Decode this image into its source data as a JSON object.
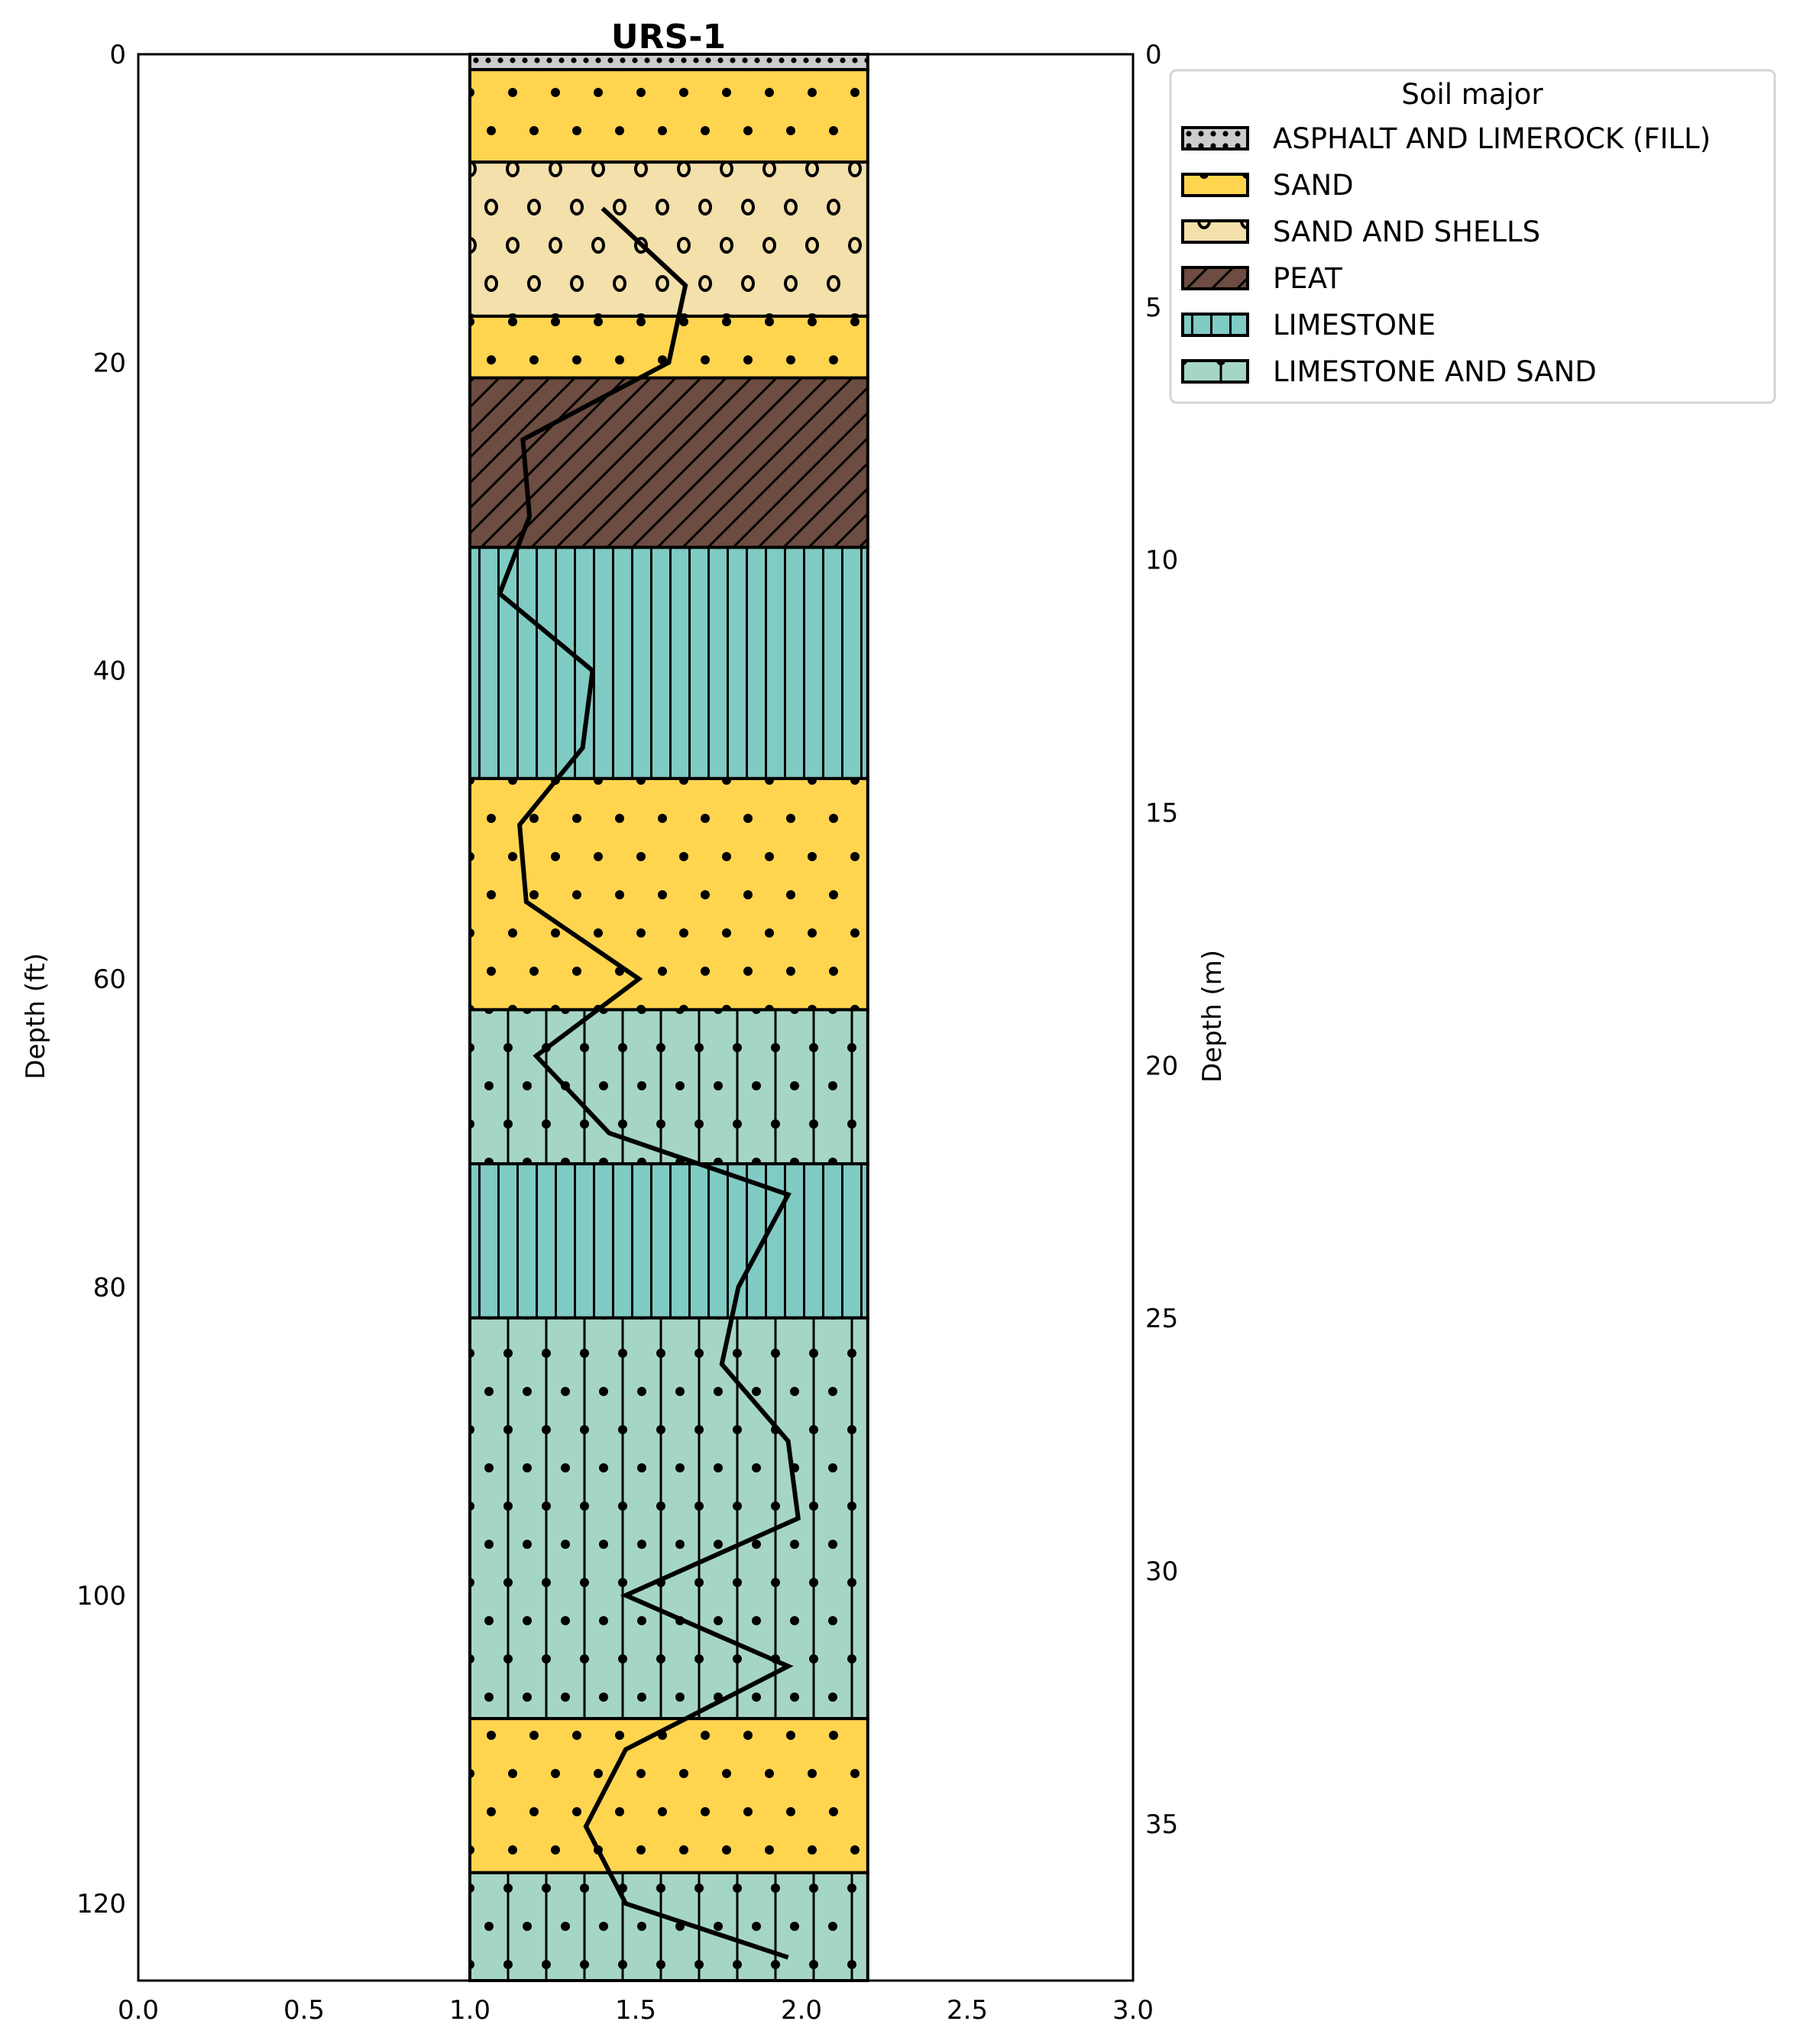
{
  "chart_data": {
    "type": "borehole-log",
    "title": "URS-1",
    "xlabel": "",
    "ylabel": "Depth (ft)",
    "ylabel_right": "Depth (m)",
    "xlim": [
      0.0,
      3.0
    ],
    "ylim": [
      125,
      0
    ],
    "ylim_m": [
      38.1,
      0
    ],
    "x_ticks": [
      "0.0",
      "0.5",
      "1.0",
      "1.5",
      "2.0",
      "2.5",
      "3.0"
    ],
    "y_ticks_ft": [
      "0",
      "20",
      "40",
      "60",
      "80",
      "100",
      "120"
    ],
    "y_ticks_m": [
      "0",
      "5",
      "10",
      "15",
      "20",
      "25",
      "30",
      "35"
    ],
    "grid": false,
    "column_x_range": [
      1.0,
      2.2
    ],
    "layers": [
      {
        "top": 0,
        "bottom": 1,
        "soil": "ASPHALT AND LIMEROCK (FILL)"
      },
      {
        "top": 1,
        "bottom": 7,
        "soil": "SAND"
      },
      {
        "top": 7,
        "bottom": 17,
        "soil": "SAND AND SHELLS"
      },
      {
        "top": 17,
        "bottom": 21,
        "soil": "SAND"
      },
      {
        "top": 21,
        "bottom": 32,
        "soil": "PEAT"
      },
      {
        "top": 32,
        "bottom": 47,
        "soil": "LIMESTONE"
      },
      {
        "top": 47,
        "bottom": 62,
        "soil": "SAND"
      },
      {
        "top": 62,
        "bottom": 72,
        "soil": "LIMESTONE AND SAND"
      },
      {
        "top": 72,
        "bottom": 82,
        "soil": "LIMESTONE"
      },
      {
        "top": 82,
        "bottom": 108,
        "soil": "LIMESTONE AND SAND"
      },
      {
        "top": 108,
        "bottom": 118,
        "soil": "SAND"
      },
      {
        "top": 118,
        "bottom": 125,
        "soil": "LIMESTONE AND SAND"
      }
    ],
    "series": [
      {
        "name": "profile",
        "color": "#000000",
        "points": [
          [
            1.4,
            10
          ],
          [
            1.65,
            15
          ],
          [
            1.6,
            20
          ],
          [
            1.16,
            25
          ],
          [
            1.18,
            30
          ],
          [
            1.09,
            35
          ],
          [
            1.37,
            40
          ],
          [
            1.34,
            45
          ],
          [
            1.15,
            50
          ],
          [
            1.17,
            55
          ],
          [
            1.51,
            60
          ],
          [
            1.2,
            65
          ],
          [
            1.42,
            70
          ],
          [
            1.96,
            74
          ],
          [
            1.81,
            80
          ],
          [
            1.76,
            85
          ],
          [
            1.96,
            90
          ],
          [
            1.99,
            95
          ],
          [
            1.47,
            100
          ],
          [
            1.96,
            104.6
          ],
          [
            1.47,
            110
          ],
          [
            1.35,
            115
          ],
          [
            1.47,
            120
          ],
          [
            1.96,
            123.5
          ]
        ]
      }
    ],
    "legend": {
      "title": "Soil major",
      "position": "upper-right-outside",
      "entries": [
        {
          "label": "ASPHALT AND LIMEROCK (FILL)",
          "color": "#cccccc",
          "hatch": "small-dots"
        },
        {
          "label": "SAND",
          "color": "#ffd54f",
          "hatch": "dots"
        },
        {
          "label": "SAND AND SHELLS",
          "color": "#f3e0aa",
          "hatch": "circles"
        },
        {
          "label": "PEAT",
          "color": "#6d4c41",
          "hatch": "diagonal"
        },
        {
          "label": "LIMESTONE",
          "color": "#80cbc4",
          "hatch": "vertical"
        },
        {
          "label": "LIMESTONE AND SAND",
          "color": "#a5d6c4",
          "hatch": "vertical-dots"
        }
      ]
    }
  }
}
